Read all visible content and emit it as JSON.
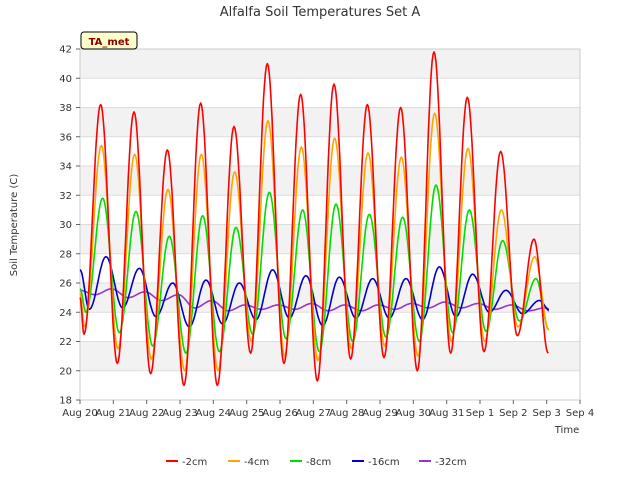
{
  "chart_data": {
    "type": "line",
    "title": "Alfalfa Soil Temperatures Set A",
    "xlabel": "Time",
    "ylabel": "Soil Temperature (C)",
    "badge": "TA_met",
    "x_ticks": [
      "Aug 20",
      "Aug 21",
      "Aug 22",
      "Aug 23",
      "Aug 24",
      "Aug 25",
      "Aug 26",
      "Aug 27",
      "Aug 28",
      "Aug 29",
      "Aug 30",
      "Aug 31",
      "Sep 1",
      "Sep 2",
      "Sep 3",
      "Sep 4"
    ],
    "x_range_days": [
      0,
      15
    ],
    "ylim": [
      18,
      42
    ],
    "y_ticks": [
      18,
      20,
      22,
      24,
      26,
      28,
      30,
      32,
      34,
      36,
      38,
      40,
      42
    ],
    "grid": "horizontal bands",
    "legend_position": "bottom",
    "series": [
      {
        "name": "-2cm",
        "color": "#ff0000",
        "daily_max": [
          38.2,
          37.7,
          35.1,
          38.3,
          36.7,
          41.0,
          38.9,
          39.6,
          38.2,
          38.0,
          41.8,
          38.7,
          35.0,
          29.0
        ],
        "daily_min": [
          22.5,
          20.5,
          19.8,
          19.0,
          19.0,
          21.2,
          20.5,
          19.3,
          20.8,
          20.9,
          20.0,
          21.2,
          21.3,
          22.4
        ],
        "start": 25.0,
        "end": 21.2,
        "peak_phase": 0.62
      },
      {
        "name": "-4cm",
        "color": "#ffa500",
        "daily_max": [
          35.4,
          34.8,
          32.4,
          34.8,
          33.6,
          37.1,
          35.3,
          35.9,
          34.9,
          34.6,
          37.6,
          35.2,
          31.0,
          27.8
        ],
        "daily_min": [
          23.0,
          21.5,
          20.8,
          20.0,
          20.0,
          22.0,
          21.0,
          20.7,
          21.5,
          21.7,
          21.0,
          22.0,
          22.0,
          23.0
        ],
        "start": 25.3,
        "end": 22.8,
        "peak_phase": 0.64
      },
      {
        "name": "-8cm",
        "color": "#00dd00",
        "daily_max": [
          31.8,
          30.9,
          29.2,
          30.6,
          29.8,
          32.2,
          31.0,
          31.4,
          30.7,
          30.5,
          32.7,
          31.0,
          28.9,
          26.3
        ],
        "daily_min": [
          24.0,
          22.6,
          21.7,
          21.2,
          21.3,
          22.5,
          22.2,
          21.3,
          22.0,
          22.3,
          22.0,
          22.6,
          22.7,
          23.4
        ],
        "start": 25.6,
        "end": 22.8,
        "peak_phase": 0.68
      },
      {
        "name": "-16cm",
        "color": "#0000cc",
        "daily_max": [
          27.8,
          27.0,
          26.0,
          26.2,
          26.0,
          26.9,
          26.5,
          26.4,
          26.3,
          26.3,
          27.1,
          26.6,
          25.5,
          24.8
        ],
        "daily_min": [
          24.2,
          24.3,
          23.7,
          23.0,
          23.2,
          23.5,
          23.6,
          23.1,
          23.6,
          23.6,
          23.5,
          23.7,
          24.0,
          23.9
        ],
        "start": 26.9,
        "end": 24.2,
        "peak_phase": 0.78
      },
      {
        "name": "-32cm",
        "color": "#9933cc",
        "daily_max": [
          25.6,
          25.4,
          25.2,
          24.8,
          24.5,
          24.5,
          24.6,
          24.5,
          24.5,
          24.6,
          24.7,
          24.6,
          24.5,
          24.3
        ],
        "daily_min": [
          25.2,
          25.0,
          24.8,
          24.3,
          24.1,
          24.2,
          24.2,
          24.1,
          24.1,
          24.2,
          24.3,
          24.3,
          24.2,
          24.1
        ],
        "start": 25.5,
        "end": 24.1,
        "peak_phase": 0.95
      }
    ]
  }
}
